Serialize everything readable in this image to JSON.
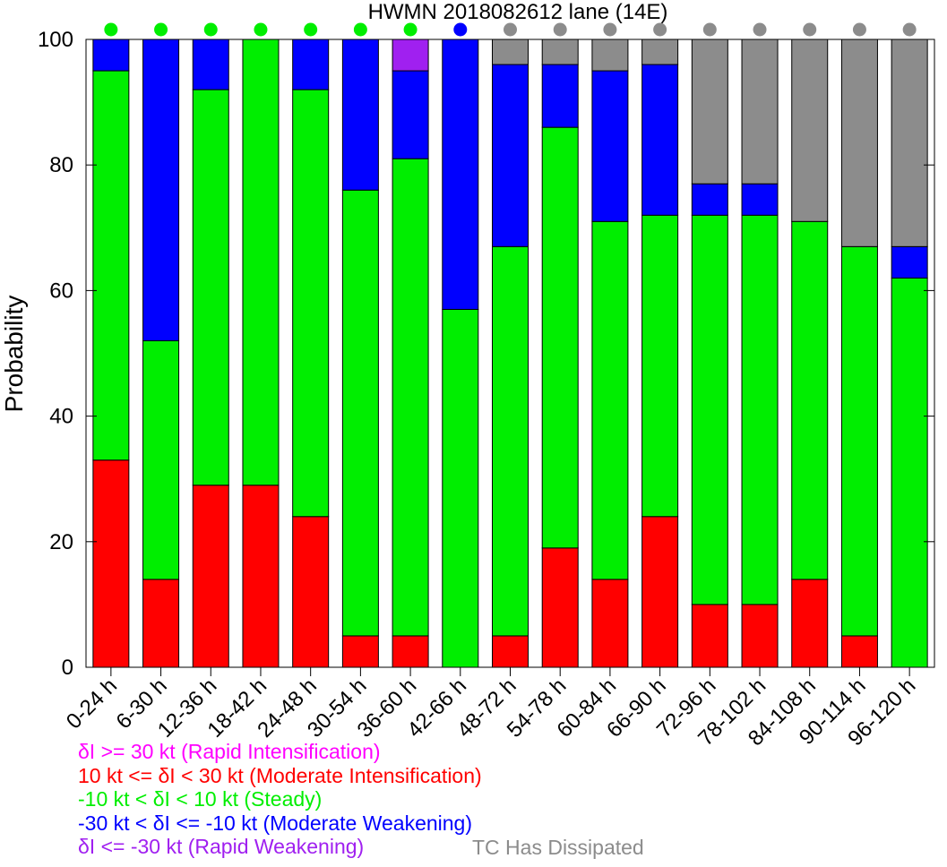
{
  "chart_data": {
    "type": "bar",
    "stacked": true,
    "title": "HWMN 2018082612 lane (14E)",
    "ylabel": "Probability",
    "xlabel": "",
    "ylim": [
      0,
      100
    ],
    "yticks": [
      0,
      20,
      40,
      60,
      80,
      100
    ],
    "grid": false,
    "categories": [
      "0-24 h",
      "6-30 h",
      "12-36 h",
      "18-42 h",
      "24-48 h",
      "30-54 h",
      "36-60 h",
      "42-66 h",
      "48-72 h",
      "54-78 h",
      "60-84 h",
      "66-90 h",
      "72-96 h",
      "78-102 h",
      "84-108 h",
      "90-114 h",
      "96-120 h"
    ],
    "series": [
      {
        "key": "moderate_intensification",
        "color": "#ff0000",
        "values": [
          33,
          14,
          29,
          29,
          24,
          5,
          5,
          0,
          5,
          19,
          14,
          24,
          10,
          10,
          14,
          5,
          0
        ]
      },
      {
        "key": "steady",
        "color": "#00ee00",
        "values": [
          62,
          38,
          63,
          71,
          68,
          71,
          76,
          57,
          62,
          67,
          57,
          48,
          62,
          62,
          57,
          62,
          62
        ]
      },
      {
        "key": "moderate_weakening",
        "color": "#0000ff",
        "values": [
          5,
          48,
          8,
          0,
          8,
          24,
          14,
          43,
          29,
          10,
          24,
          24,
          5,
          5,
          0,
          0,
          5
        ]
      },
      {
        "key": "rapid_weakening",
        "color": "#a020f0",
        "values": [
          0,
          0,
          0,
          0,
          0,
          0,
          5,
          0,
          0,
          0,
          0,
          0,
          0,
          0,
          0,
          0,
          0
        ]
      },
      {
        "key": "dissipated",
        "color": "#8c8c8c",
        "values": [
          0,
          0,
          0,
          0,
          0,
          0,
          0,
          0,
          4,
          4,
          5,
          4,
          23,
          23,
          29,
          33,
          33
        ]
      }
    ],
    "top_markers": [
      "#00ee00",
      "#00ee00",
      "#00ee00",
      "#00ee00",
      "#00ee00",
      "#00ee00",
      "#00ee00",
      "#0000ff",
      "#8c8c8c",
      "#8c8c8c",
      "#8c8c8c",
      "#8c8c8c",
      "#8c8c8c",
      "#8c8c8c",
      "#8c8c8c",
      "#8c8c8c",
      "#8c8c8c"
    ],
    "legend": [
      {
        "label": "δI >= 30 kt (Rapid Intensification)",
        "color": "#ff00ff"
      },
      {
        "label": "10 kt <= δI < 30 kt (Moderate Intensification)",
        "color": "#ff0000"
      },
      {
        "label": "-10 kt < δI < 10 kt (Steady)",
        "color": "#00ee00"
      },
      {
        "label": "-30 kt < δI <= -10 kt (Moderate Weakening)",
        "color": "#0000ff"
      },
      {
        "label": "δI <= -30 kt (Rapid Weakening)",
        "color": "#a020f0"
      }
    ],
    "dissipated_label": "TC Has Dissipated",
    "dissipated_color": "#8c8c8c"
  }
}
